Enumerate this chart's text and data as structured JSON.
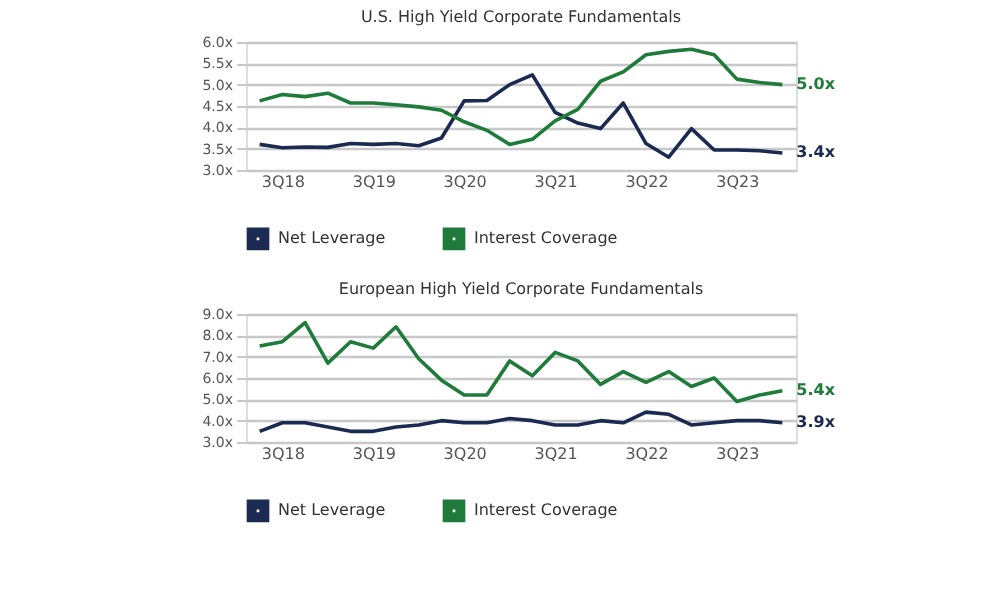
{
  "chart_data": [
    {
      "type": "line",
      "title": "U.S. High Yield Corporate Fundamentals",
      "categories": [
        null,
        "3Q18",
        null,
        null,
        null,
        "3Q19",
        null,
        null,
        null,
        "3Q20",
        null,
        null,
        null,
        "3Q21",
        null,
        null,
        null,
        "3Q22",
        null,
        null,
        null,
        "3Q23",
        null,
        null
      ],
      "series": [
        {
          "name": "Net Leverage",
          "color": "#1b2a50",
          "values": [
            3.6,
            3.52,
            3.54,
            3.53,
            3.62,
            3.6,
            3.62,
            3.57,
            3.75,
            4.62,
            4.63,
            5.0,
            5.23,
            4.35,
            4.1,
            3.97,
            4.57,
            3.62,
            3.3,
            3.97,
            3.47,
            3.47,
            3.45,
            3.4
          ]
        },
        {
          "name": "Interest Coverage",
          "color": "#1e7b3a",
          "values": [
            4.62,
            4.77,
            4.72,
            4.8,
            4.57,
            4.57,
            4.53,
            4.48,
            4.4,
            4.13,
            3.93,
            3.6,
            3.72,
            4.15,
            4.42,
            5.08,
            5.3,
            5.7,
            5.78,
            5.83,
            5.7,
            5.13,
            5.05,
            5.0
          ]
        }
      ],
      "ylim": [
        3.0,
        6.0
      ],
      "yticks": [
        {
          "value": 3.0,
          "label": "3.0x"
        },
        {
          "value": 3.5,
          "label": "3.5x"
        },
        {
          "value": 4.0,
          "label": "4.0x"
        },
        {
          "value": 4.5,
          "label": "4.5x"
        },
        {
          "value": 5.0,
          "label": "5.0x"
        },
        {
          "value": 5.5,
          "label": "5.5x"
        },
        {
          "value": 6.0,
          "label": "6.0x"
        }
      ],
      "grid": "y",
      "legend": "bottom",
      "annotations": [
        "5.0x",
        "3.4x"
      ]
    },
    {
      "type": "line",
      "title": "European High Yield Corporate Fundamentals",
      "categories": [
        null,
        "3Q18",
        null,
        null,
        null,
        "3Q19",
        null,
        null,
        null,
        "3Q20",
        null,
        null,
        null,
        "3Q21",
        null,
        null,
        null,
        "3Q22",
        null,
        null,
        null,
        "3Q23",
        null,
        null
      ],
      "series": [
        {
          "name": "Net Leverage",
          "color": "#1b2a50",
          "values": [
            3.5,
            3.9,
            3.9,
            3.7,
            3.5,
            3.5,
            3.7,
            3.8,
            4.0,
            3.9,
            3.9,
            4.1,
            4.0,
            3.8,
            3.8,
            4.0,
            3.9,
            4.4,
            4.3,
            3.8,
            3.9,
            4.0,
            4.0,
            3.9
          ]
        },
        {
          "name": "Interest Coverage",
          "color": "#1e7b3a",
          "values": [
            7.5,
            7.7,
            8.6,
            6.7,
            7.7,
            7.4,
            8.4,
            6.9,
            5.9,
            5.2,
            5.2,
            6.8,
            6.1,
            7.2,
            6.8,
            5.7,
            6.3,
            5.8,
            6.3,
            5.6,
            6.0,
            4.9,
            5.2,
            5.4
          ]
        }
      ],
      "ylim": [
        3.0,
        9.0
      ],
      "yticks": [
        {
          "value": 3.0,
          "label": "3.0x"
        },
        {
          "value": 4.0,
          "label": "4.0x"
        },
        {
          "value": 5.0,
          "label": "5.0x"
        },
        {
          "value": 6.0,
          "label": "6.0x"
        },
        {
          "value": 7.0,
          "label": "7.0x"
        },
        {
          "value": 8.0,
          "label": "8.0x"
        },
        {
          "value": 9.0,
          "label": "9.0x"
        }
      ],
      "grid": "y",
      "legend": "bottom",
      "annotations": [
        "5.4x",
        "3.9x"
      ]
    }
  ]
}
